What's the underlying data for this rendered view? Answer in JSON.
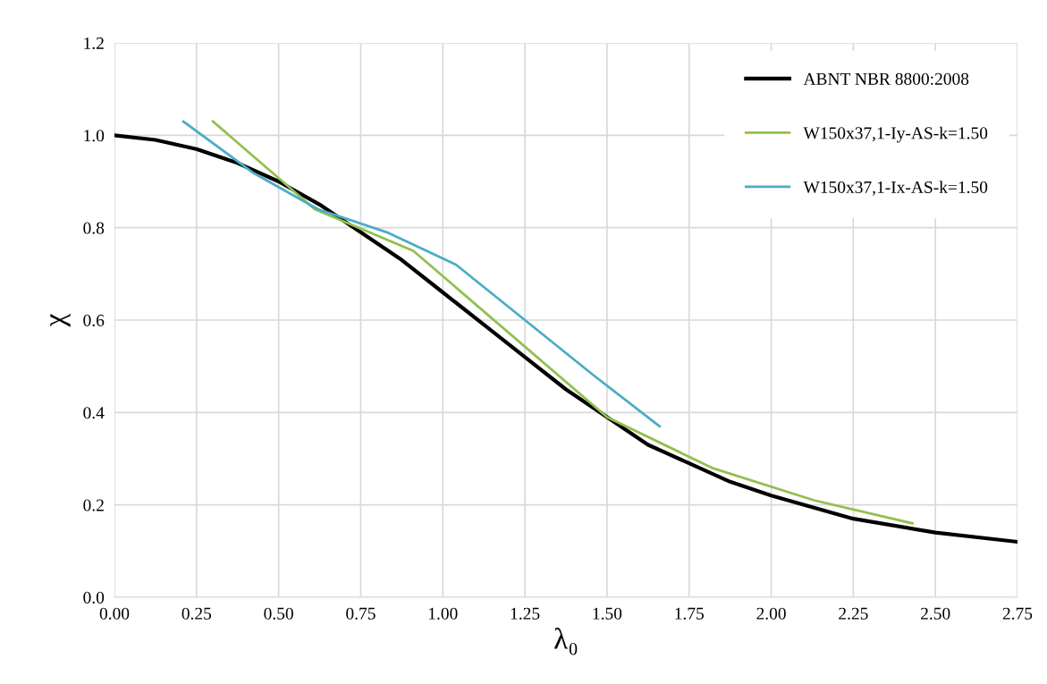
{
  "chart_data": {
    "type": "line",
    "xlabel": "λ₀",
    "ylabel": "χ",
    "xlim": [
      0,
      2.75
    ],
    "xticks": [
      {
        "value": 0,
        "label": "0.00"
      },
      {
        "value": 0.25,
        "label": "0.25"
      },
      {
        "value": 0.5,
        "label": "0.50"
      },
      {
        "value": 0.75,
        "label": "0.75"
      },
      {
        "value": 1,
        "label": "1.00"
      },
      {
        "value": 1.25,
        "label": "1.25"
      },
      {
        "value": 1.5,
        "label": "1.50"
      },
      {
        "value": 1.75,
        "label": "1.75"
      },
      {
        "value": 2,
        "label": "2.00"
      },
      {
        "value": 2.25,
        "label": "2.25"
      },
      {
        "value": 2.5,
        "label": "2.50"
      },
      {
        "value": 2.75,
        "label": "2.75"
      }
    ],
    "ylim": [
      0,
      1.2
    ],
    "yticks": [
      {
        "value": 0,
        "label": "0.0"
      },
      {
        "value": 0.2,
        "label": "0.2"
      },
      {
        "value": 0.4,
        "label": "0.4"
      },
      {
        "value": 0.6,
        "label": "0.6"
      },
      {
        "value": 0.8,
        "label": "0.8"
      },
      {
        "value": 1,
        "label": "1.0"
      },
      {
        "value": 1.2,
        "label": "1.2"
      }
    ],
    "grid": true,
    "legend": "top right",
    "marker": "none",
    "line_style": "solid",
    "series": [
      {
        "name": "ABNT NBR 8800:2008",
        "color": "#000000",
        "x": [
          0,
          0.125,
          0.25,
          0.375,
          0.5,
          0.625,
          0.75,
          0.875,
          1.0,
          1.125,
          1.25,
          1.375,
          1.5,
          1.625,
          1.75,
          1.875,
          2.0,
          2.25,
          2.5,
          2.75
        ],
        "values": [
          1.0,
          0.99,
          0.97,
          0.94,
          0.9,
          0.85,
          0.79,
          0.73,
          0.66,
          0.59,
          0.52,
          0.45,
          0.39,
          0.33,
          0.29,
          0.25,
          0.22,
          0.17,
          0.14,
          0.12
        ]
      },
      {
        "name": "W150x37,1-Iy-AS-k=1.50",
        "color": "#92bf4f",
        "x": [
          0.3,
          0.61,
          0.91,
          1.5,
          1.82,
          2.13,
          2.43
        ],
        "values": [
          1.03,
          0.84,
          0.75,
          0.39,
          0.28,
          0.21,
          0.16
        ]
      },
      {
        "name": "W150x37,1-Ix-AS-k=1.50",
        "color": "#4bacc6",
        "x": [
          0.21,
          0.42,
          0.62,
          0.83,
          1.04,
          1.46,
          1.66
        ],
        "values": [
          1.03,
          0.92,
          0.84,
          0.79,
          0.72,
          0.48,
          0.37
        ]
      }
    ]
  }
}
